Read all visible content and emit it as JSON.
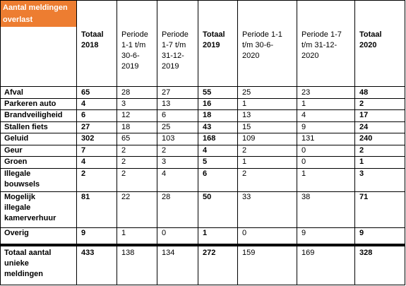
{
  "title": "Aantal meldingen overlast kamerverhuur",
  "columns": [
    "Totaal 2018",
    "Periode 1-1 t/m 30-6-2019",
    "Periode 1-7 t/m 31-12-2019",
    "Totaal 2019",
    "Periode 1-1 t/m 30-6-2020",
    "Periode 1-7 t/m 31-12-2020",
    "Totaal 2020"
  ],
  "header_lines": [
    [
      "Totaal",
      "2018"
    ],
    [
      "Periode",
      "1-1 t/m",
      "30-6-",
      "2019"
    ],
    [
      "Periode",
      "1-7 t/m",
      "31-12-",
      "2019"
    ],
    [
      "Totaal",
      "2019"
    ],
    [
      "Periode 1-1",
      "t/m 30-6-",
      "2020"
    ],
    [
      "Periode 1-7",
      "t/m 31-12-",
      "2020"
    ],
    [
      "Totaal",
      "2020"
    ]
  ],
  "rows": [
    {
      "label": [
        "Afval"
      ],
      "values": [
        "65",
        "28",
        "27",
        "55",
        "25",
        "23",
        "48"
      ]
    },
    {
      "label": [
        "Parkeren auto"
      ],
      "values": [
        "4",
        "3",
        "13",
        "16",
        "1",
        "1",
        "2"
      ]
    },
    {
      "label": [
        "Brandveiligheid"
      ],
      "values": [
        "6",
        "12",
        "6",
        "18",
        "13",
        "4",
        "17"
      ]
    },
    {
      "label": [
        "Stallen fiets"
      ],
      "values": [
        "27",
        "18",
        "25",
        "43",
        "15",
        "9",
        "24"
      ]
    },
    {
      "label": [
        "Geluid"
      ],
      "values": [
        "302",
        "65",
        "103",
        "168",
        "109",
        "131",
        "240"
      ]
    },
    {
      "label": [
        "Geur"
      ],
      "values": [
        "7",
        "2",
        "2",
        "4",
        "2",
        "0",
        "2"
      ]
    },
    {
      "label": [
        "Groen"
      ],
      "values": [
        "4",
        "2",
        "3",
        "5",
        "1",
        "0",
        "1"
      ]
    },
    {
      "label": [
        "Illegale",
        "bouwsels"
      ],
      "values": [
        "2",
        "2",
        "4",
        "6",
        "2",
        "1",
        "3"
      ]
    },
    {
      "label": [
        "Mogelijk",
        "illegale",
        "kamerverhuur"
      ],
      "values": [
        "81",
        "22",
        "28",
        "50",
        "33",
        "38",
        "71"
      ]
    },
    {
      "label": [
        "Overig"
      ],
      "values": [
        "9",
        "1",
        "0",
        "1",
        "0",
        "9",
        "9"
      ]
    }
  ],
  "total_row": {
    "label": [
      "Totaal aantal",
      "unieke",
      "meldingen"
    ],
    "values": [
      "433",
      "138",
      "134",
      "272",
      "159",
      "169",
      "328"
    ]
  },
  "colors": {
    "title_bg": "#ed7d31",
    "title_fg": "#ffffff",
    "border": "#000000"
  }
}
